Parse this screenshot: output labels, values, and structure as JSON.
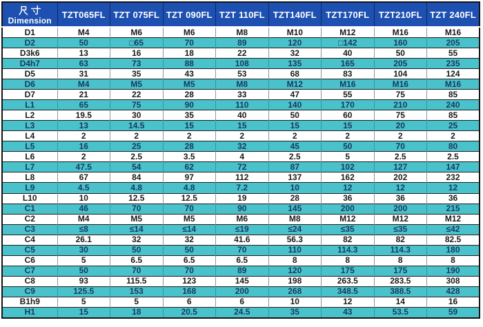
{
  "colors": {
    "header_bg": "#1d50b0",
    "header_text": "#ffffff",
    "stripe_bg": "#4ac2cb",
    "stripe_text": "#163a5c",
    "row_bg": "#ffffff",
    "row_text": "#1a1a1a",
    "outer_border": "#141414"
  },
  "header": {
    "dim_label_cn": "尺寸",
    "dim_label_en": "Dimension"
  },
  "chart_data": {
    "type": "table",
    "title": "TZT series flange dimension table",
    "columns": [
      "TZT065FL",
      "TZT 075FL",
      "TZT 090FL",
      "TZT 110FL",
      "TZT140FL",
      "TZT170FL",
      "TZT210FL",
      "TZT 240FL"
    ],
    "rows": [
      {
        "label": "D1",
        "values": [
          "M4",
          "M6",
          "M6",
          "M8",
          "M10",
          "M12",
          "M16",
          "M16"
        ]
      },
      {
        "label": "D2",
        "values": [
          "50",
          "□65",
          "70",
          "89",
          "120",
          "□142",
          "160",
          "205"
        ]
      },
      {
        "label": "D3k6",
        "values": [
          "13",
          "16",
          "18",
          "22",
          "32",
          "40",
          "50",
          "55"
        ]
      },
      {
        "label": "D4h7",
        "values": [
          "63",
          "73",
          "88",
          "108",
          "135",
          "165",
          "205",
          "235"
        ]
      },
      {
        "label": "D5",
        "values": [
          "31",
          "35",
          "43",
          "53",
          "68",
          "83",
          "104",
          "124"
        ]
      },
      {
        "label": "D6",
        "values": [
          "M4",
          "M5",
          "M5",
          "M8",
          "M12",
          "M16",
          "M16",
          "M16"
        ]
      },
      {
        "label": "D7",
        "values": [
          "21",
          "22",
          "28",
          "33",
          "47",
          "55",
          "75",
          "85"
        ]
      },
      {
        "label": "L1",
        "values": [
          "65",
          "75",
          "90",
          "110",
          "140",
          "170",
          "210",
          "240"
        ]
      },
      {
        "label": "L2",
        "values": [
          "19.5",
          "30",
          "35",
          "40",
          "50",
          "60",
          "75",
          "85"
        ]
      },
      {
        "label": "L3",
        "values": [
          "13",
          "14.5",
          "15",
          "15",
          "15",
          "15",
          "20",
          "25"
        ]
      },
      {
        "label": "L4",
        "values": [
          "2",
          "2",
          "2",
          "2",
          "2",
          "2",
          "2",
          "2"
        ]
      },
      {
        "label": "L5",
        "values": [
          "16",
          "25",
          "28",
          "32",
          "45",
          "50",
          "70",
          "80"
        ]
      },
      {
        "label": "L6",
        "values": [
          "2",
          "2.5",
          "3.5",
          "4",
          "2.5",
          "5",
          "2.5",
          "2.5"
        ]
      },
      {
        "label": "L7",
        "values": [
          "47.5",
          "54",
          "62",
          "72",
          "87",
          "102",
          "127",
          "147"
        ]
      },
      {
        "label": "L8",
        "values": [
          "67",
          "84",
          "97",
          "112",
          "137",
          "162",
          "202",
          "232"
        ]
      },
      {
        "label": "L9",
        "values": [
          "4.5",
          "4.8",
          "4.8",
          "7.2",
          "10",
          "12",
          "12",
          "12"
        ]
      },
      {
        "label": "L10",
        "values": [
          "10",
          "12.5",
          "12.5",
          "19",
          "28",
          "36",
          "36",
          "36"
        ]
      },
      {
        "label": "C1",
        "values": [
          "46",
          "70",
          "70",
          "90",
          "145",
          "200",
          "200",
          "215"
        ]
      },
      {
        "label": "C2",
        "values": [
          "M4",
          "M5",
          "M5",
          "M6",
          "M8",
          "M12",
          "M12",
          "M12"
        ]
      },
      {
        "label": "C3",
        "values": [
          "≤8",
          "≤14",
          "≤14",
          "≤19",
          "≤24",
          "≤35",
          "≤35",
          "≤42"
        ]
      },
      {
        "label": "C4",
        "values": [
          "26.1",
          "32",
          "32",
          "41.6",
          "56.3",
          "82",
          "82",
          "82.5"
        ]
      },
      {
        "label": "C5",
        "values": [
          "30",
          "50",
          "50",
          "70",
          "110",
          "114.3",
          "114.3",
          "180"
        ]
      },
      {
        "label": "C6",
        "values": [
          "5",
          "6.5",
          "6.5",
          "6.5",
          "8",
          "8",
          "8",
          "8"
        ]
      },
      {
        "label": "C7",
        "values": [
          "50",
          "70",
          "70",
          "89",
          "120",
          "175",
          "175",
          "190"
        ]
      },
      {
        "label": "C8",
        "values": [
          "93",
          "115.5",
          "123",
          "145",
          "198",
          "263.5",
          "283.5",
          "308"
        ]
      },
      {
        "label": "C9",
        "values": [
          "125.5",
          "153",
          "168",
          "200",
          "268",
          "348.5",
          "388.5",
          "428"
        ]
      },
      {
        "label": "B1h9",
        "values": [
          "5",
          "5",
          "6",
          "6",
          "10",
          "12",
          "14",
          "16"
        ]
      },
      {
        "label": "H1",
        "values": [
          "15",
          "18",
          "20.5",
          "24.5",
          "35",
          "43",
          "53.5",
          "59"
        ]
      }
    ]
  }
}
